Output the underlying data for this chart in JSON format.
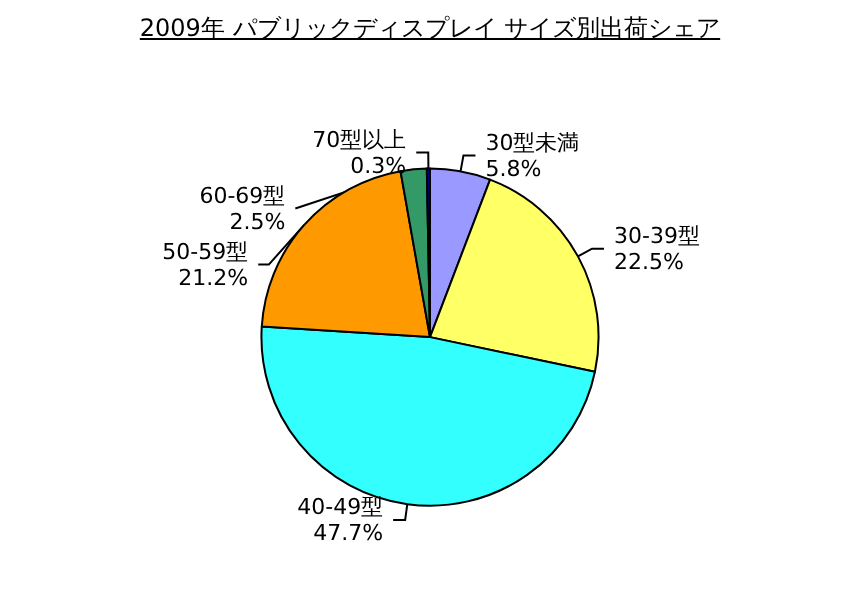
{
  "chart_data": {
    "type": "pie",
    "title": "2009年 パブリックディスプレイ サイズ別出荷シェア",
    "categories": [
      "30型未満",
      "30-39型",
      "40-49型",
      "50-59型",
      "60-69型",
      "70型以上"
    ],
    "values": [
      5.8,
      22.5,
      47.7,
      21.2,
      2.5,
      0.3
    ],
    "value_labels": [
      "5.8%",
      "22.5%",
      "47.7%",
      "21.2%",
      "2.5%",
      "0.3%"
    ],
    "colors": [
      "#9999ff",
      "#ffff66",
      "#33ffff",
      "#ff9900",
      "#339966",
      "#000080"
    ],
    "legend": false
  }
}
